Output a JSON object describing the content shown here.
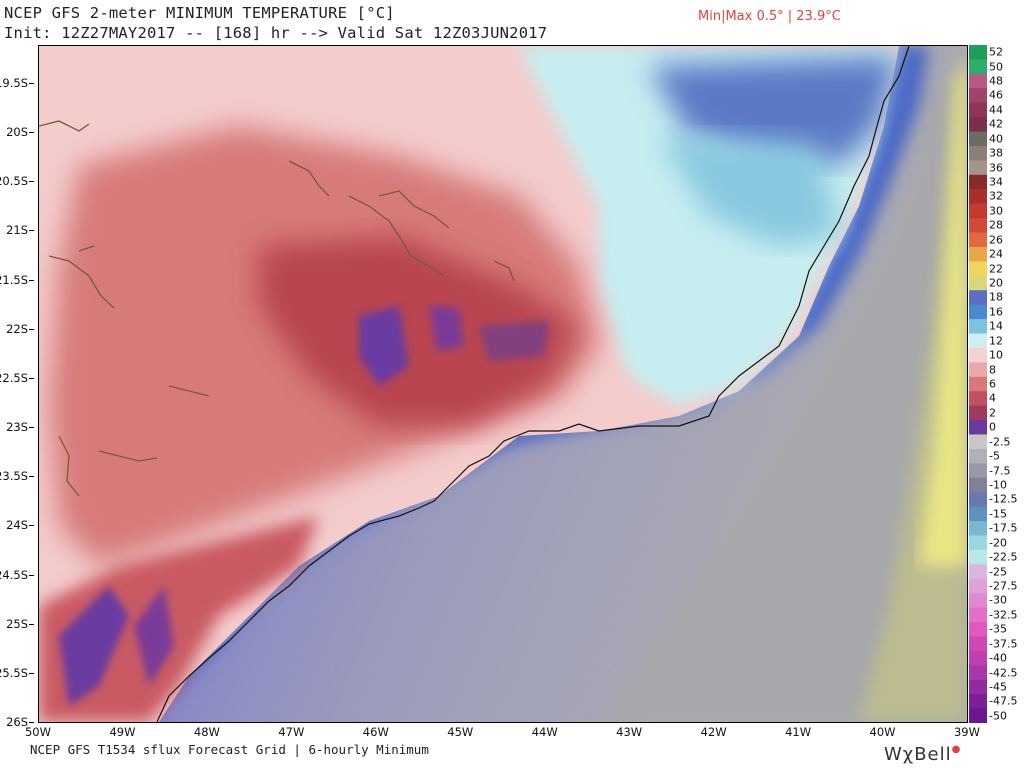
{
  "header": {
    "title": "NCEP GFS 2-meter MINIMUM TEMPERATURE [°C]",
    "init_line": "Init: 12Z27MAY2017 -- [168] hr --> Valid Sat 12Z03JUN2017",
    "minmax": "Min|Max 0.5° | 23.9°C"
  },
  "map": {
    "lat_labels": [
      "19.5S",
      "20S",
      "20.5S",
      "21S",
      "21.5S",
      "22S",
      "22.5S",
      "23S",
      "23.5S",
      "24S",
      "24.5S",
      "25S",
      "25.5S",
      "26S"
    ],
    "lon_labels": [
      "50W",
      "49W",
      "48W",
      "47W",
      "46W",
      "45W",
      "44W",
      "43W",
      "42W",
      "41W",
      "40W",
      "39W"
    ],
    "colors": {
      "ocean_deep": "#a3a3b8",
      "ocean_mid": "#8d88c6",
      "ocean_near": "#6e6fcc",
      "coast_blue": "#4f70c8",
      "cyan": "#bfeef0",
      "land_pink": "#f6cfcf",
      "land_red": "#cf6868",
      "land_dark": "#a63a4a",
      "cold_purple": "#6a3aa0",
      "yellow": "#e9e685",
      "olive": "#bdbd92"
    }
  },
  "colorbar": {
    "labels": [
      "52",
      "50",
      "48",
      "46",
      "44",
      "42",
      "40",
      "38",
      "36",
      "34",
      "32",
      "30",
      "28",
      "26",
      "24",
      "22",
      "20",
      "18",
      "16",
      "14",
      "12",
      "10",
      "8",
      "6",
      "4",
      "2",
      "0",
      "-2.5",
      "-5",
      "-7.5",
      "-10",
      "-12.5",
      "-15",
      "-17.5",
      "-20",
      "-22.5",
      "-25",
      "-27.5",
      "-30",
      "-32.5",
      "-35",
      "-37.5",
      "-40",
      "-42.5",
      "-45",
      "-47.5",
      "-50"
    ]
  },
  "footer": {
    "source": "NCEP GFS T1534 sflux Forecast Grid | 6-hourly Minimum",
    "logo": "WxBell"
  }
}
